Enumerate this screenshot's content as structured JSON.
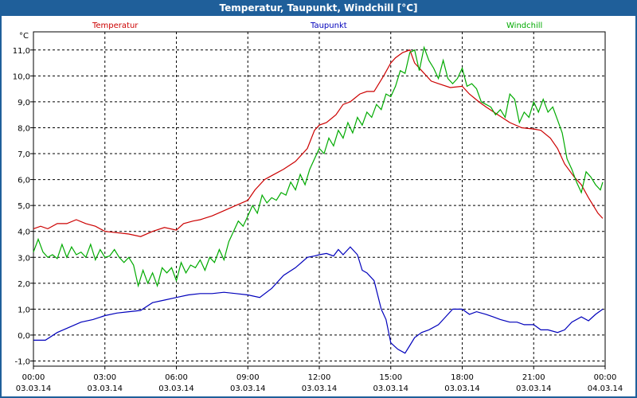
{
  "window": {
    "title": "Temperatur, Taupunkt, Windchill [°C]"
  },
  "chart_data": {
    "type": "line",
    "title": "Temperatur, Taupunkt, Windchill [°C]",
    "ylabel": "°C",
    "xlabel": "",
    "xlim": [
      0,
      24
    ],
    "ylim": [
      -1.2,
      11.7
    ],
    "grid": true,
    "legend_position": "top",
    "y_ticks": [
      -1.0,
      0.0,
      1.0,
      2.0,
      3.0,
      4.0,
      5.0,
      6.0,
      7.0,
      8.0,
      9.0,
      10.0,
      11.0
    ],
    "y_tick_labels": [
      "-1,0",
      "0,0",
      "1,0",
      "2,0",
      "3,0",
      "4,0",
      "5,0",
      "6,0",
      "7,0",
      "8,0",
      "9,0",
      "10,0",
      "11,0"
    ],
    "x_ticks": [
      0,
      3,
      6,
      9,
      12,
      15,
      18,
      21,
      24
    ],
    "x_tick_times": [
      "00:00",
      "03:00",
      "06:00",
      "09:00",
      "12:00",
      "15:00",
      "18:00",
      "21:00",
      "00:00"
    ],
    "x_tick_dates": [
      "03.03.14",
      "03.03.14",
      "03.03.14",
      "03.03.14",
      "03.03.14",
      "03.03.14",
      "03.03.14",
      "03.03.14",
      "04.03.14"
    ],
    "series": [
      {
        "name": "Temperatur",
        "color": "#cc0000",
        "x": [
          0,
          0.3,
          0.6,
          1.0,
          1.4,
          1.8,
          2.2,
          2.6,
          3.0,
          3.5,
          4.0,
          4.5,
          5.0,
          5.5,
          6.0,
          6.3,
          6.7,
          7.0,
          7.5,
          8.0,
          8.5,
          9.0,
          9.3,
          9.7,
          10.0,
          10.5,
          11.0,
          11.5,
          11.8,
          12.0,
          12.3,
          12.7,
          13.0,
          13.3,
          13.7,
          14.0,
          14.3,
          14.7,
          15.0,
          15.2,
          15.5,
          15.8,
          16.0,
          16.3,
          16.7,
          17.0,
          17.5,
          18.0,
          18.3,
          18.7,
          19.0,
          19.5,
          20.0,
          20.5,
          21.0,
          21.3,
          21.7,
          22.0,
          22.3,
          22.7,
          23.0,
          23.3,
          23.7,
          23.9
        ],
        "values": [
          4.1,
          4.2,
          4.1,
          4.3,
          4.3,
          4.45,
          4.3,
          4.2,
          4.0,
          3.95,
          3.9,
          3.8,
          4.0,
          4.15,
          4.05,
          4.3,
          4.4,
          4.45,
          4.6,
          4.8,
          5.0,
          5.2,
          5.6,
          6.0,
          6.15,
          6.4,
          6.7,
          7.2,
          7.9,
          8.1,
          8.2,
          8.5,
          8.9,
          9.0,
          9.3,
          9.4,
          9.4,
          10.0,
          10.5,
          10.7,
          10.9,
          11.0,
          10.5,
          10.2,
          9.8,
          9.7,
          9.55,
          9.6,
          9.3,
          9.0,
          8.8,
          8.5,
          8.2,
          8.0,
          7.95,
          7.9,
          7.6,
          7.2,
          6.6,
          6.1,
          5.8,
          5.3,
          4.7,
          4.5
        ]
      },
      {
        "name": "Taupunkt",
        "color": "#0000bb",
        "x": [
          0,
          0.5,
          1.0,
          1.5,
          2.0,
          2.5,
          3.0,
          3.5,
          4.0,
          4.5,
          5.0,
          5.5,
          6.0,
          6.5,
          7.0,
          7.5,
          8.0,
          8.5,
          9.0,
          9.5,
          10.0,
          10.5,
          11.0,
          11.5,
          11.8,
          12.0,
          12.3,
          12.6,
          12.8,
          13.0,
          13.3,
          13.6,
          13.8,
          14.0,
          14.3,
          14.6,
          14.8,
          15.0,
          15.3,
          15.6,
          15.8,
          16.0,
          16.3,
          16.6,
          17.0,
          17.3,
          17.6,
          18.0,
          18.3,
          18.6,
          19.0,
          19.3,
          19.6,
          20.0,
          20.3,
          20.6,
          21.0,
          21.3,
          21.6,
          22.0,
          22.3,
          22.6,
          23.0,
          23.3,
          23.6,
          23.9
        ],
        "values": [
          -0.2,
          -0.2,
          0.1,
          0.3,
          0.5,
          0.6,
          0.75,
          0.85,
          0.9,
          0.95,
          1.25,
          1.35,
          1.45,
          1.55,
          1.6,
          1.6,
          1.65,
          1.6,
          1.55,
          1.45,
          1.8,
          2.3,
          2.6,
          3.0,
          3.05,
          3.1,
          3.15,
          3.05,
          3.3,
          3.1,
          3.4,
          3.1,
          2.5,
          2.4,
          2.1,
          1.0,
          0.6,
          -0.3,
          -0.55,
          -0.7,
          -0.4,
          -0.1,
          0.1,
          0.2,
          0.4,
          0.7,
          1.0,
          1.0,
          0.8,
          0.9,
          0.8,
          0.7,
          0.6,
          0.5,
          0.5,
          0.4,
          0.4,
          0.2,
          0.2,
          0.1,
          0.2,
          0.5,
          0.7,
          0.55,
          0.8,
          1.0
        ]
      },
      {
        "name": "Windchill",
        "color": "#00aa00",
        "x": [
          0,
          0.2,
          0.4,
          0.6,
          0.8,
          1.0,
          1.2,
          1.4,
          1.6,
          1.8,
          2.0,
          2.2,
          2.4,
          2.6,
          2.8,
          3.0,
          3.2,
          3.4,
          3.6,
          3.8,
          4.0,
          4.2,
          4.4,
          4.6,
          4.8,
          5.0,
          5.2,
          5.4,
          5.6,
          5.8,
          6.0,
          6.2,
          6.4,
          6.6,
          6.8,
          7.0,
          7.2,
          7.4,
          7.6,
          7.8,
          8.0,
          8.2,
          8.4,
          8.6,
          8.8,
          9.0,
          9.2,
          9.4,
          9.6,
          9.8,
          10.0,
          10.2,
          10.4,
          10.6,
          10.8,
          11.0,
          11.2,
          11.4,
          11.6,
          11.8,
          12.0,
          12.2,
          12.4,
          12.6,
          12.8,
          13.0,
          13.2,
          13.4,
          13.6,
          13.8,
          14.0,
          14.2,
          14.4,
          14.6,
          14.8,
          15.0,
          15.2,
          15.4,
          15.6,
          15.8,
          16.0,
          16.2,
          16.4,
          16.6,
          16.8,
          17.0,
          17.2,
          17.4,
          17.6,
          17.8,
          18.0,
          18.2,
          18.4,
          18.6,
          18.8,
          19.0,
          19.2,
          19.4,
          19.6,
          19.8,
          20.0,
          20.2,
          20.4,
          20.6,
          20.8,
          21.0,
          21.2,
          21.4,
          21.6,
          21.8,
          22.0,
          22.2,
          22.4,
          22.6,
          22.8,
          23.0,
          23.2,
          23.4,
          23.6,
          23.8,
          23.9
        ],
        "values": [
          3.2,
          3.7,
          3.2,
          3.0,
          3.1,
          2.95,
          3.5,
          3.0,
          3.4,
          3.1,
          3.2,
          3.0,
          3.5,
          2.9,
          3.3,
          3.0,
          3.05,
          3.3,
          3.0,
          2.8,
          3.0,
          2.7,
          1.9,
          2.5,
          2.0,
          2.4,
          1.9,
          2.6,
          2.4,
          2.6,
          2.1,
          2.8,
          2.4,
          2.7,
          2.6,
          2.9,
          2.5,
          3.0,
          2.8,
          3.3,
          2.9,
          3.6,
          4.0,
          4.4,
          4.2,
          4.6,
          5.0,
          4.7,
          5.4,
          5.1,
          5.3,
          5.2,
          5.5,
          5.4,
          5.9,
          5.6,
          6.2,
          5.8,
          6.4,
          6.8,
          7.2,
          7.0,
          7.6,
          7.3,
          7.9,
          7.6,
          8.2,
          7.8,
          8.4,
          8.1,
          8.6,
          8.4,
          8.9,
          8.7,
          9.3,
          9.2,
          9.6,
          10.2,
          10.1,
          10.9,
          11.0,
          10.2,
          11.1,
          10.6,
          10.3,
          9.9,
          10.6,
          9.9,
          9.7,
          9.9,
          10.3,
          9.6,
          9.7,
          9.5,
          9.0,
          8.9,
          8.8,
          8.5,
          8.7,
          8.4,
          9.3,
          9.1,
          8.2,
          8.6,
          8.4,
          9.0,
          8.6,
          9.1,
          8.6,
          8.8,
          8.3,
          7.8,
          6.8,
          6.4,
          5.9,
          5.5,
          6.3,
          6.1,
          5.8,
          5.6,
          5.9
        ]
      }
    ]
  }
}
